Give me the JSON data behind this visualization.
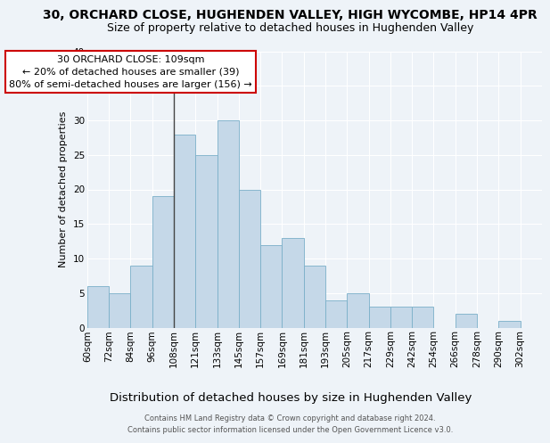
{
  "title1": "30, ORCHARD CLOSE, HUGHENDEN VALLEY, HIGH WYCOMBE, HP14 4PR",
  "title2": "Size of property relative to detached houses in Hughenden Valley",
  "xlabel": "Distribution of detached houses by size in Hughenden Valley",
  "ylabel": "Number of detached properties",
  "footer1": "Contains HM Land Registry data © Crown copyright and database right 2024.",
  "footer2": "Contains public sector information licensed under the Open Government Licence v3.0.",
  "annotation_title": "30 ORCHARD CLOSE: 109sqm",
  "annotation_line2": "← 20% of detached houses are smaller (39)",
  "annotation_line3": "80% of semi-detached houses are larger (156) →",
  "bin_labels": [
    "60sqm",
    "72sqm",
    "84sqm",
    "96sqm",
    "108sqm",
    "121sqm",
    "133sqm",
    "145sqm",
    "157sqm",
    "169sqm",
    "181sqm",
    "193sqm",
    "205sqm",
    "217sqm",
    "229sqm",
    "242sqm",
    "254sqm",
    "266sqm",
    "278sqm",
    "290sqm",
    "302sqm"
  ],
  "bar_heights": [
    6,
    5,
    9,
    19,
    28,
    25,
    30,
    20,
    12,
    13,
    9,
    4,
    5,
    3,
    3,
    3,
    0,
    2,
    0,
    1,
    0
  ],
  "bar_color": "#c5d8e8",
  "bar_edge_color": "#7aafc8",
  "bg_color": "#eef3f8",
  "plot_bg_color": "#eef3f8",
  "ylim": [
    0,
    40
  ],
  "yticks": [
    0,
    5,
    10,
    15,
    20,
    25,
    30,
    35,
    40
  ],
  "grid_color": "#ffffff",
  "annotation_box_color": "#ffffff",
  "annotation_box_edge_color": "#cc0000",
  "title_fontsize": 10,
  "subtitle_fontsize": 9,
  "xlabel_fontsize": 9,
  "ylabel_fontsize": 8,
  "tick_fontsize": 7.5,
  "footer_fontsize": 6,
  "annot_fontsize": 8
}
